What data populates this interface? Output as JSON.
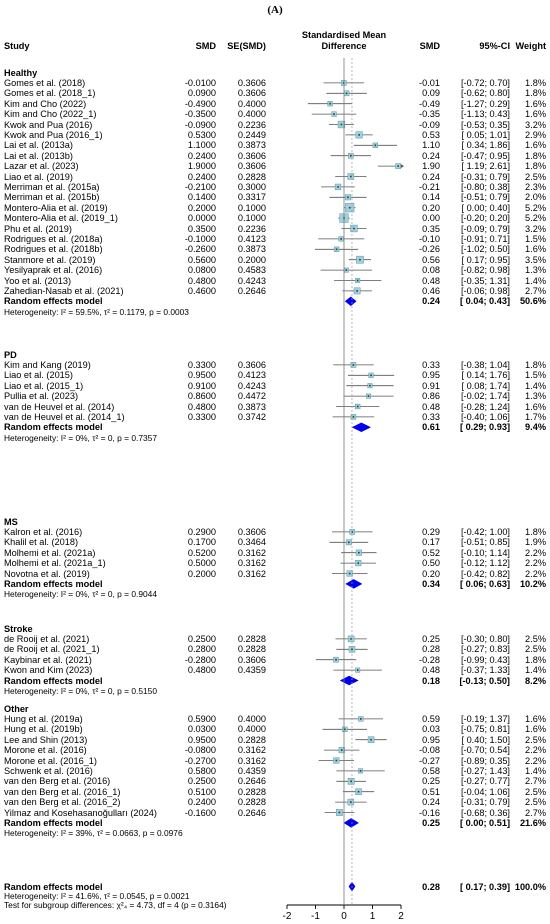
{
  "panel_label": "(A)",
  "columns": {
    "study": "Study",
    "smd": "SMD",
    "se": "SE(SMD)",
    "plot_title_line1": "Standardised Mean",
    "plot_title_line2": "Difference",
    "smd2": "SMD",
    "ci": "95%-CI",
    "weight": "Weight"
  },
  "colors": {
    "box": "#9fd0dc",
    "box_stroke": "#5a9aab",
    "diamond": "#0000ee",
    "line": "#555555"
  },
  "chart_data": {
    "type": "forest",
    "xlim": [
      -2,
      2
    ],
    "xticks": [
      "-2",
      "-1",
      "0",
      "1",
      "2"
    ],
    "null_line": 0,
    "groups": [
      {
        "name": "Healthy",
        "studies": [
          {
            "study": "Gomes et al. (2018)",
            "smd": "-0.0100",
            "se": "0.3606",
            "est": "-0.01",
            "ci": "[-0.72; 0.70]",
            "weight": "1.8%",
            "v": -0.01,
            "lo": -0.72,
            "hi": 0.7
          },
          {
            "study": "Gomes et al. (2018_1)",
            "smd": "0.0900",
            "se": "0.3606",
            "est": "0.09",
            "ci": "[-0.62; 0.80]",
            "weight": "1.8%",
            "v": 0.09,
            "lo": -0.62,
            "hi": 0.8
          },
          {
            "study": "Kim and Cho (2022)",
            "smd": "-0.4900",
            "se": "0.4000",
            "est": "-0.49",
            "ci": "[-1.27; 0.29]",
            "weight": "1.6%",
            "v": -0.49,
            "lo": -1.27,
            "hi": 0.29
          },
          {
            "study": "Kim and Cho (2022_1)",
            "smd": "-0.3500",
            "se": "0.4000",
            "est": "-0.35",
            "ci": "[-1.13; 0.43]",
            "weight": "1.6%",
            "v": -0.35,
            "lo": -1.13,
            "hi": 0.43
          },
          {
            "study": "Kwok and Pua (2016)",
            "smd": "-0.0900",
            "se": "0.2236",
            "est": "-0.09",
            "ci": "[-0.53; 0.35]",
            "weight": "3.2%",
            "v": -0.09,
            "lo": -0.53,
            "hi": 0.35
          },
          {
            "study": "Kwok and Pua (2016_1)",
            "smd": "0.5300",
            "se": "0.2449",
            "est": "0.53",
            "ci": "[ 0.05; 1.01]",
            "weight": "2.9%",
            "v": 0.53,
            "lo": 0.05,
            "hi": 1.01
          },
          {
            "study": "Lai et al. (2013a)",
            "smd": "1.1000",
            "se": "0.3873",
            "est": "1.10",
            "ci": "[ 0.34; 1.86]",
            "weight": "1.6%",
            "v": 1.1,
            "lo": 0.34,
            "hi": 1.86
          },
          {
            "study": "Lai et al. (2013b)",
            "smd": "0.2400",
            "se": "0.3606",
            "est": "0.24",
            "ci": "[-0.47; 0.95]",
            "weight": "1.8%",
            "v": 0.24,
            "lo": -0.47,
            "hi": 0.95
          },
          {
            "study": "Lazar et al. (2023)",
            "smd": "1.9000",
            "se": "0.3606",
            "est": "1.90",
            "ci": "[ 1.19; 2.61]",
            "weight": "1.8%",
            "v": 1.9,
            "lo": 1.19,
            "hi": 2.61
          },
          {
            "study": "Liao et al. (2019)",
            "smd": "0.2400",
            "se": "0.2828",
            "est": "0.24",
            "ci": "[-0.31; 0.79]",
            "weight": "2.5%",
            "v": 0.24,
            "lo": -0.31,
            "hi": 0.79
          },
          {
            "study": "Merriman et al. (2015a)",
            "smd": "-0.2100",
            "se": "0.3000",
            "est": "-0.21",
            "ci": "[-0.80; 0.38]",
            "weight": "2.3%",
            "v": -0.21,
            "lo": -0.8,
            "hi": 0.38
          },
          {
            "study": "Merriman et al. (2015b)",
            "smd": "0.1400",
            "se": "0.3317",
            "est": "0.14",
            "ci": "[-0.51; 0.79]",
            "weight": "2.0%",
            "v": 0.14,
            "lo": -0.51,
            "hi": 0.79
          },
          {
            "study": "Montero-Alia et al. (2019)",
            "smd": "0.2000",
            "se": "0.1000",
            "est": "0.20",
            "ci": "[ 0.00; 0.40]",
            "weight": "5.2%",
            "v": 0.2,
            "lo": 0.0,
            "hi": 0.4
          },
          {
            "study": "Montero-Alia et al. (2019_1)",
            "smd": "0.0000",
            "se": "0.1000",
            "est": "0.00",
            "ci": "[-0.20; 0.20]",
            "weight": "5.2%",
            "v": 0.0,
            "lo": -0.2,
            "hi": 0.2
          },
          {
            "study": "Phu et al. (2019)",
            "smd": "0.3500",
            "se": "0.2236",
            "est": "0.35",
            "ci": "[-0.09; 0.79]",
            "weight": "3.2%",
            "v": 0.35,
            "lo": -0.09,
            "hi": 0.79
          },
          {
            "study": "Rodrigues et al. (2018a)",
            "smd": "-0.1000",
            "se": "0.4123",
            "est": "-0.10",
            "ci": "[-0.91; 0.71]",
            "weight": "1.5%",
            "v": -0.1,
            "lo": -0.91,
            "hi": 0.71
          },
          {
            "study": "Rodrigues et al. (2018b)",
            "smd": "-0.2600",
            "se": "0.3873",
            "est": "-0.26",
            "ci": "[-1.02; 0.50]",
            "weight": "1.6%",
            "v": -0.26,
            "lo": -1.02,
            "hi": 0.5
          },
          {
            "study": "Stanmore et al. (2019)",
            "smd": "0.5600",
            "se": "0.2000",
            "est": "0.56",
            "ci": "[ 0.17; 0.95]",
            "weight": "3.5%",
            "v": 0.56,
            "lo": 0.17,
            "hi": 0.95
          },
          {
            "study": "Yesilyaprak et al. (2016)",
            "smd": "0.0800",
            "se": "0.4583",
            "est": "0.08",
            "ci": "[-0.82; 0.98]",
            "weight": "1.3%",
            "v": 0.08,
            "lo": -0.82,
            "hi": 0.98
          },
          {
            "study": "Yoo et al. (2013)",
            "smd": "0.4800",
            "se": "0.4243",
            "est": "0.48",
            "ci": "[-0.35; 1.31]",
            "weight": "1.4%",
            "v": 0.48,
            "lo": -0.35,
            "hi": 1.31
          },
          {
            "study": "Zahedian-Nasab et al. (2021)",
            "smd": "0.4600",
            "se": "0.2646",
            "est": "0.46",
            "ci": "[-0.06; 0.98]",
            "weight": "2.7%",
            "v": 0.46,
            "lo": -0.06,
            "hi": 0.98
          }
        ],
        "pooled": {
          "label": "Random effects model",
          "est": "0.24",
          "ci": "[ 0.04; 0.43]",
          "weight": "50.6%",
          "v": 0.24,
          "lo": 0.04,
          "hi": 0.43
        },
        "heterogeneity": "Heterogeneity: I² = 59.5%, τ² = 0.1179, p = 0.0003"
      },
      {
        "name": "PD",
        "studies": [
          {
            "study": "Kim and Kang (2019)",
            "smd": "0.3300",
            "se": "0.3606",
            "est": "0.33",
            "ci": "[-0.38; 1.04]",
            "weight": "1.8%",
            "v": 0.33,
            "lo": -0.38,
            "hi": 1.04
          },
          {
            "study": "Liao et al. (2015)",
            "smd": "0.9500",
            "se": "0.4123",
            "est": "0.95",
            "ci": "[ 0.14; 1.76]",
            "weight": "1.5%",
            "v": 0.95,
            "lo": 0.14,
            "hi": 1.76
          },
          {
            "study": "Liao et al. (2015_1)",
            "smd": "0.9100",
            "se": "0.4243",
            "est": "0.91",
            "ci": "[ 0.08; 1.74]",
            "weight": "1.4%",
            "v": 0.91,
            "lo": 0.08,
            "hi": 1.74
          },
          {
            "study": "Pullia et al. (2023)",
            "smd": "0.8600",
            "se": "0.4472",
            "est": "0.86",
            "ci": "[-0.02; 1.74]",
            "weight": "1.3%",
            "v": 0.86,
            "lo": -0.02,
            "hi": 1.74
          },
          {
            "study": "van de Heuvel et al. (2014)",
            "smd": "0.4800",
            "se": "0.3873",
            "est": "0.48",
            "ci": "[-0.28; 1.24]",
            "weight": "1.6%",
            "v": 0.48,
            "lo": -0.28,
            "hi": 1.24
          },
          {
            "study": "van de Heuvel et al. (2014_1)",
            "smd": "0.3300",
            "se": "0.3742",
            "est": "0.33",
            "ci": "[-0.40; 1.06]",
            "weight": "1.7%",
            "v": 0.33,
            "lo": -0.4,
            "hi": 1.06
          }
        ],
        "pooled": {
          "label": "Random effects model",
          "est": "0.61",
          "ci": "[ 0.29; 0.93]",
          "weight": "9.4%",
          "v": 0.61,
          "lo": 0.29,
          "hi": 0.93
        },
        "heterogeneity": "Heterogeneity: I² = 0%, τ² = 0, p = 0.7357"
      },
      {
        "name": "MS",
        "studies": [
          {
            "study": "Kalron et al. (2016)",
            "smd": "0.2900",
            "se": "0.3606",
            "est": "0.29",
            "ci": "[-0.42; 1.00]",
            "weight": "1.8%",
            "v": 0.29,
            "lo": -0.42,
            "hi": 1.0
          },
          {
            "study": "Khalil et al. (2018)",
            "smd": "0.1700",
            "se": "0.3464",
            "est": "0.17",
            "ci": "[-0.51; 0.85]",
            "weight": "1.9%",
            "v": 0.17,
            "lo": -0.51,
            "hi": 0.85
          },
          {
            "study": "Molhemi et al. (2021a)",
            "smd": "0.5200",
            "se": "0.3162",
            "est": "0.52",
            "ci": "[-0.10; 1.14]",
            "weight": "2.2%",
            "v": 0.52,
            "lo": -0.1,
            "hi": 1.14
          },
          {
            "study": "Molhemi et al. (2021a_1)",
            "smd": "0.5000",
            "se": "0.3162",
            "est": "0.50",
            "ci": "[-0.12; 1.12]",
            "weight": "2.2%",
            "v": 0.5,
            "lo": -0.12,
            "hi": 1.12
          },
          {
            "study": "Novotna et al. (2019)",
            "smd": "0.2000",
            "se": "0.3162",
            "est": "0.20",
            "ci": "[-0.42; 0.82]",
            "weight": "2.2%",
            "v": 0.2,
            "lo": -0.42,
            "hi": 0.82
          }
        ],
        "pooled": {
          "label": "Random effects model",
          "est": "0.34",
          "ci": "[ 0.06; 0.63]",
          "weight": "10.2%",
          "v": 0.34,
          "lo": 0.06,
          "hi": 0.63
        },
        "heterogeneity": "Heterogeneity: I² = 0%, τ² = 0, p = 0.9044"
      },
      {
        "name": "Stroke",
        "studies": [
          {
            "study": "de Rooij et al. (2021)",
            "smd": "0.2500",
            "se": "0.2828",
            "est": "0.25",
            "ci": "[-0.30; 0.80]",
            "weight": "2.5%",
            "v": 0.25,
            "lo": -0.3,
            "hi": 0.8
          },
          {
            "study": "de Rooij et al. (2021_1)",
            "smd": "0.2800",
            "se": "0.2828",
            "est": "0.28",
            "ci": "[-0.27; 0.83]",
            "weight": "2.5%",
            "v": 0.28,
            "lo": -0.27,
            "hi": 0.83
          },
          {
            "study": "Kaybinar et al. (2021)",
            "smd": "-0.2800",
            "se": "0.3606",
            "est": "-0.28",
            "ci": "[-0.99; 0.43]",
            "weight": "1.8%",
            "v": -0.28,
            "lo": -0.99,
            "hi": 0.43
          },
          {
            "study": "Kwon and Kim (2023)",
            "smd": "0.4800",
            "se": "0.4359",
            "est": "0.48",
            "ci": "[-0.37; 1.33]",
            "weight": "1.4%",
            "v": 0.48,
            "lo": -0.37,
            "hi": 1.33
          }
        ],
        "pooled": {
          "label": "Random effects model",
          "est": "0.18",
          "ci": "[-0.13; 0.50]",
          "weight": "8.2%",
          "v": 0.18,
          "lo": -0.13,
          "hi": 0.5
        },
        "heterogeneity": "Heterogeneity: I² = 0%, τ² = 0, p = 0.5150"
      },
      {
        "name": "Other",
        "studies": [
          {
            "study": "Hung et al. (2019a)",
            "smd": "0.5900",
            "se": "0.4000",
            "est": "0.59",
            "ci": "[-0.19; 1.37]",
            "weight": "1.6%",
            "v": 0.59,
            "lo": -0.19,
            "hi": 1.37
          },
          {
            "study": "Hung et al. (2019b)",
            "smd": "0.0300",
            "se": "0.4000",
            "est": "0.03",
            "ci": "[-0.75; 0.81]",
            "weight": "1.6%",
            "v": 0.03,
            "lo": -0.75,
            "hi": 0.81
          },
          {
            "study": "Lee and Shin (2013)",
            "smd": "0.9500",
            "se": "0.2828",
            "est": "0.95",
            "ci": "[ 0.40; 1.50]",
            "weight": "2.5%",
            "v": 0.95,
            "lo": 0.4,
            "hi": 1.5
          },
          {
            "study": "Morone et al. (2016)",
            "smd": "-0.0800",
            "se": "0.3162",
            "est": "-0.08",
            "ci": "[-0.70; 0.54]",
            "weight": "2.2%",
            "v": -0.08,
            "lo": -0.7,
            "hi": 0.54
          },
          {
            "study": "Morone et al. (2016_1)",
            "smd": "-0.2700",
            "se": "0.3162",
            "est": "-0.27",
            "ci": "[-0.89; 0.35]",
            "weight": "2.2%",
            "v": -0.27,
            "lo": -0.89,
            "hi": 0.35
          },
          {
            "study": "Schwenk et al. (2016)",
            "smd": "0.5800",
            "se": "0.4359",
            "est": "0.58",
            "ci": "[-0.27; 1.43]",
            "weight": "1.4%",
            "v": 0.58,
            "lo": -0.27,
            "hi": 1.43
          },
          {
            "study": "van den Berg et al. (2016)",
            "smd": "0.2500",
            "se": "0.2646",
            "est": "0.25",
            "ci": "[-0.27; 0.77]",
            "weight": "2.7%",
            "v": 0.25,
            "lo": -0.27,
            "hi": 0.77
          },
          {
            "study": "van den Berg et al. (2016_1)",
            "smd": "0.5100",
            "se": "0.2828",
            "est": "0.51",
            "ci": "[-0.04; 1.06]",
            "weight": "2.5%",
            "v": 0.51,
            "lo": -0.04,
            "hi": 1.06
          },
          {
            "study": "van den Berg et al. (2016_2)",
            "smd": "0.2400",
            "se": "0.2828",
            "est": "0.24",
            "ci": "[-0.31; 0.79]",
            "weight": "2.5%",
            "v": 0.24,
            "lo": -0.31,
            "hi": 0.79
          },
          {
            "study": "Yilmaz and Kosehasanoğulları (2024)",
            "smd": "-0.1600",
            "se": "0.2646",
            "est": "-0.16",
            "ci": "[-0.68; 0.36]",
            "weight": "2.7%",
            "v": -0.16,
            "lo": -0.68,
            "hi": 0.36
          }
        ],
        "pooled": {
          "label": "Random effects model",
          "est": "0.25",
          "ci": "[ 0.00; 0.51]",
          "weight": "21.6%",
          "v": 0.25,
          "lo": 0.0,
          "hi": 0.51
        },
        "heterogeneity": "Heterogeneity: I² = 39%, τ² = 0.0663, p = 0.0976"
      }
    ],
    "overall": {
      "label": "Random effects model",
      "est": "0.28",
      "ci": "[ 0.17; 0.39]",
      "weight": "100.0%",
      "v": 0.28,
      "lo": 0.17,
      "hi": 0.39
    },
    "overall_heterogeneity": "Heterogeneity: I² = 41.6%, τ² = 0.0545, p = 0.0021",
    "subgroup_test": "Test for subgroup differences: χ²₄ = 4.73, df = 4 (p = 0.3164)"
  }
}
